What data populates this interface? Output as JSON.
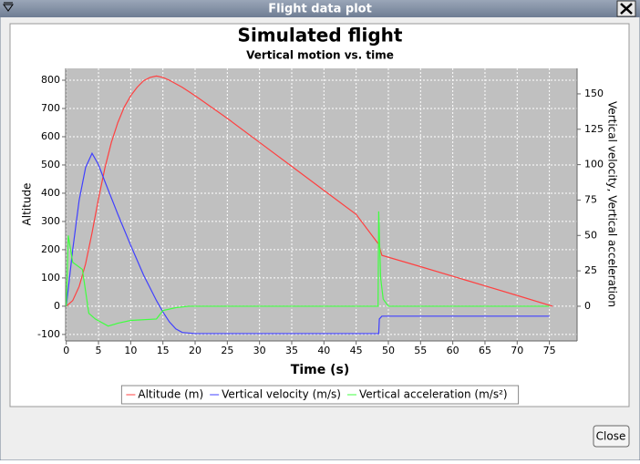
{
  "window": {
    "title": "Flight data plot",
    "close_button": "Close"
  },
  "chart_data": {
    "type": "line",
    "title": "Simulated flight",
    "subtitle": "Vertical motion vs. time",
    "xlabel": "Time (s)",
    "ylabel": "Altitude",
    "y2label": "Vertical velocity, Vertical acceleration",
    "xlim": [
      -0.1,
      79.3
    ],
    "xticks": [
      0,
      5,
      10,
      15,
      20,
      25,
      30,
      35,
      40,
      45,
      50,
      55,
      60,
      65,
      70,
      75
    ],
    "ylim": [
      -123,
      842
    ],
    "yticks": [
      -100,
      0,
      100,
      200,
      300,
      400,
      500,
      600,
      700,
      800
    ],
    "y2lim": [
      -24.5,
      168
    ],
    "y2ticks": [
      0,
      25,
      50,
      75,
      100,
      125,
      150
    ],
    "grid": true,
    "legend": "bottom",
    "series": [
      {
        "name": "Altitude (m)",
        "color": "#ff4040",
        "x": [
          0,
          1,
          2,
          3,
          4,
          5,
          6,
          7,
          8,
          9,
          10,
          11,
          12,
          13,
          14,
          15,
          16,
          18,
          20,
          25,
          30,
          35,
          40,
          45,
          48.5,
          49,
          55,
          60,
          65,
          70,
          75.5
        ],
        "values": [
          0,
          20,
          70,
          150,
          260,
          380,
          490,
          580,
          650,
          705,
          745,
          775,
          798,
          810,
          815,
          810,
          800,
          775,
          745,
          665,
          580,
          495,
          410,
          325,
          219,
          180,
          140,
          106,
          72,
          38,
          0
        ]
      },
      {
        "name": "Vertical velocity (m/s)",
        "color": "#4040ff",
        "axis": "y2",
        "x": [
          0,
          1,
          2,
          3,
          4,
          5,
          6,
          8,
          10,
          12,
          14,
          15,
          16,
          17,
          18,
          20,
          48.5,
          48.6,
          49,
          75
        ],
        "values": [
          0,
          40,
          75,
          98,
          108,
          100,
          88,
          65,
          43,
          22,
          4,
          -4,
          -11,
          -16,
          -18.5,
          -19.3,
          -19.3,
          -9,
          -7,
          -7
        ]
      },
      {
        "name": "Vertical acceleration (m/s²)",
        "color": "#40ff40",
        "axis": "y2",
        "x": [
          0,
          0.3,
          1,
          2.5,
          3.5,
          4.5,
          6.5,
          8,
          10,
          14,
          15,
          17,
          19,
          48.4,
          48.5,
          48.8,
          49.2,
          50,
          75
        ],
        "values": [
          0,
          50,
          31,
          26,
          -5,
          -9,
          -14,
          -12,
          -10,
          -9,
          -3,
          -1,
          0,
          0,
          67,
          20,
          5,
          0,
          0
        ]
      }
    ]
  }
}
